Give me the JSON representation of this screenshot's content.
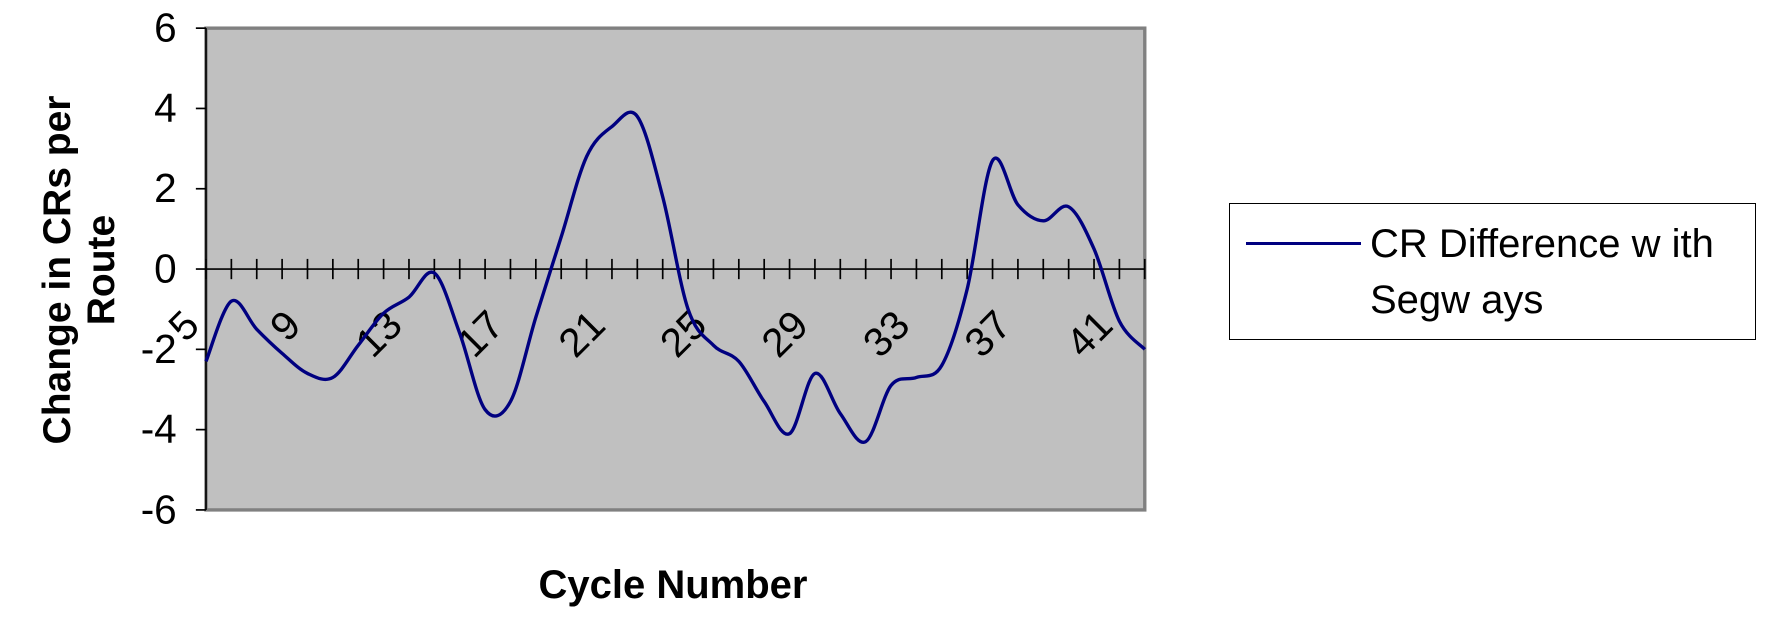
{
  "chart_data": {
    "type": "line",
    "y_label": "Change in CRs per Route",
    "x_label": "Cycle Number",
    "categories": [
      "5",
      null,
      null,
      null,
      "9",
      null,
      null,
      null,
      "13",
      null,
      null,
      null,
      "17",
      null,
      null,
      null,
      "21",
      null,
      null,
      null,
      "25",
      null,
      null,
      null,
      "29",
      null,
      null,
      null,
      "33",
      null,
      null,
      null,
      "37",
      null,
      null,
      null,
      "41",
      null
    ],
    "series": [
      {
        "name": "CR Difference w ith Segw ays",
        "color": "#000080",
        "values": [
          -2.3,
          -0.8,
          -1.5,
          -2.1,
          -2.6,
          -2.7,
          -1.9,
          -1.1,
          -0.7,
          -0.1,
          -1.6,
          -3.5,
          -3.3,
          -1.2,
          0.8,
          2.8,
          3.55,
          3.8,
          1.8,
          -1.0,
          -1.9,
          -2.3,
          -3.3,
          -4.1,
          -2.6,
          -3.6,
          -4.3,
          -2.9,
          -2.7,
          -2.4,
          -0.5,
          2.7,
          1.6,
          1.2,
          1.55,
          0.5,
          -1.3,
          -2.0
        ]
      }
    ],
    "ylim": [
      -6,
      6
    ],
    "yticks": [
      -6,
      -4,
      -2,
      0,
      2,
      4,
      6
    ],
    "plot_background": "#c0c0c0",
    "smooth": true
  }
}
